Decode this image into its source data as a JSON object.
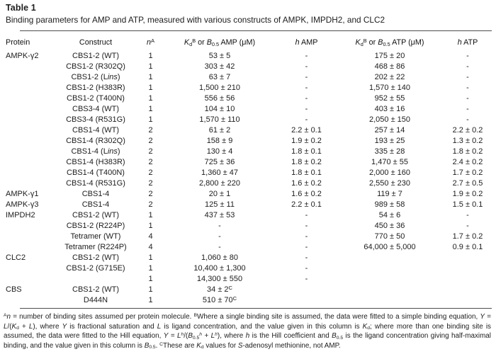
{
  "table": {
    "label": "Table 1",
    "caption": "Binding parameters for AMP and ATP, measured with various constructs of AMPK, IMPDH2, and CLC2",
    "columns": [
      {
        "key": "protein",
        "label_html": "Protein"
      },
      {
        "key": "construct",
        "label_html": "Construct"
      },
      {
        "key": "n",
        "label_html": "<i>n</i><sup>A</sup>"
      },
      {
        "key": "kd-amp",
        "label_html": "<i>K</i><sub>d</sub><sup>B</sup> or <i>B</i><sub>0.5</sub> AMP (μM)"
      },
      {
        "key": "h-amp",
        "label_html": "<i>h</i> AMP"
      },
      {
        "key": "kd-atp",
        "label_html": "<i>K</i><sub>d</sub><sup>B</sup> or <i>B</i><sub>0.5</sub> ATP (μM)"
      },
      {
        "key": "h-atp",
        "label_html": "<i>h</i> ATP"
      }
    ],
    "rows": [
      [
        "AMPK-γ2",
        "CBS1-2 (WT)",
        "1",
        "53 ± 5",
        "-",
        "175 ± 20",
        "-"
      ],
      [
        "",
        "CBS1-2 (R302Q)",
        "1",
        "303 ± 42",
        "-",
        "468 ± 86",
        "-"
      ],
      [
        "",
        "CBS1-2 (L<i>ins</i>)",
        "1",
        "63 ± 7",
        "-",
        "202 ± 22",
        "-"
      ],
      [
        "",
        "CBS1-2 (H383R)",
        "1",
        "1,500 ± 210",
        "-",
        "1,570 ± 140",
        "-"
      ],
      [
        "",
        "CBS1-2 (T400N)",
        "1",
        "556 ± 56",
        "-",
        "952 ± 55",
        "-"
      ],
      [
        "",
        "CBS3-4 (WT)",
        "1",
        "104 ± 10",
        "-",
        "403 ± 16",
        "-"
      ],
      [
        "",
        "CBS3-4 (R531G)",
        "1",
        "1,570 ± 110",
        "-",
        "2,050 ± 150",
        "-"
      ],
      [
        "",
        "CBS1-4 (WT)",
        "2",
        "61 ± 2",
        "2.2 ± 0.1",
        "257 ± 14",
        "2.2 ± 0.2"
      ],
      [
        "",
        "CBS1-4 (R302Q)",
        "2",
        "158 ± 9",
        "1.9 ± 0.2",
        "193 ± 25",
        "1.3 ± 0.2"
      ],
      [
        "",
        "CBS1-4 (L<i>ins</i>)",
        "2",
        "130 ± 4",
        "1.8 ± 0.1",
        "335 ± 28",
        "1.8 ± 0.2"
      ],
      [
        "",
        "CBS1-4 (H383R)",
        "2",
        "725 ± 36",
        "1.8 ± 0.2",
        "1,470 ± 55",
        "2.4 ± 0.2"
      ],
      [
        "",
        "CBS1-4 (T400N)",
        "2",
        "1,360 ± 47",
        "1.8 ± 0.1",
        "2,000 ± 160",
        "1.7 ± 0.2"
      ],
      [
        "",
        "CBS1-4 (R531G)",
        "2",
        "2,800 ± 220",
        "1.6 ± 0.2",
        "2,550 ± 230",
        "2.7 ± 0.5"
      ],
      [
        "AMPK-γ1",
        "CBS1-4",
        "2",
        "20 ± 1",
        "1.6 ± 0.2",
        "119 ± 7",
        "1.9 ± 0.2"
      ],
      [
        "AMPK-γ3",
        "CBS1-4",
        "2",
        "125 ± 11",
        "2.2 ± 0.1",
        "989 ± 58",
        "1.5 ± 0.1"
      ],
      [
        "IMPDH2",
        "CBS1-2 (WT)",
        "1",
        "437 ± 53",
        "-",
        "54 ± 6",
        "-"
      ],
      [
        "",
        "CBS1-2 (R224P)",
        "1",
        "-",
        "-",
        "450 ± 36",
        "-"
      ],
      [
        "",
        "Tetramer (WT)",
        "4",
        "-",
        "-",
        "770 ± 50",
        "1.7 ± 0.2"
      ],
      [
        "",
        "Tetramer (R224P)",
        "4",
        "-",
        "-",
        "64,000 ± 5,000",
        "0.9 ± 0.1"
      ],
      [
        "CLC2",
        "CBS1-2 (WT)",
        "1",
        "1,060 ± 80",
        "-",
        "",
        ""
      ],
      [
        "",
        "CBS1-2 (G715E)",
        "1",
        "10,400 ± 1,300",
        "-",
        "",
        ""
      ],
      [
        "",
        "",
        "1",
        "14,300 ± 550",
        "-",
        "",
        ""
      ],
      [
        "CBS",
        "CBS1-2 (WT)",
        "1",
        "34 ± 2<sup>C</sup>",
        "",
        "",
        ""
      ],
      [
        "",
        "D444N",
        "1",
        "510 ± 70<sup>C</sup>",
        "",
        "",
        ""
      ]
    ]
  },
  "footnotes": {
    "html": "<sup>A</sup><i>n</i> = number of binding sites assumed per protein molecule. <sup>B</sup>Where a single binding site is assumed, the data were fitted to a simple binding equation, <i>Y</i> = <i>L</i>/(<i>K</i><sub>d</sub> + <i>L</i>), where <i>Y</i> is fractional saturation and <i>L</i> is ligand concentration, and the value given in this column is <i>K</i><sub>d</sub>; where more than one binding site is assumed, the data were fitted to the Hill equation, <i>Y</i> = <i>L</i><sup><i>h</i></sup>/(<i>B</i><sub>0.5</sub><sup><i>h</i></sup> + <i>L</i><sup><i>h</i></sup>), where <i>h</i> is the Hill coefficient and <i>B</i><sub>0.5</sub> is the ligand concentration giving half-maximal binding, and the value given in this column is <i>B</i><sub>0.5</sub>. <sup>C</sup>These are <i>K</i><sub>d</sub> values for <i>S</i>-adenosyl methionine, not AMP."
  }
}
